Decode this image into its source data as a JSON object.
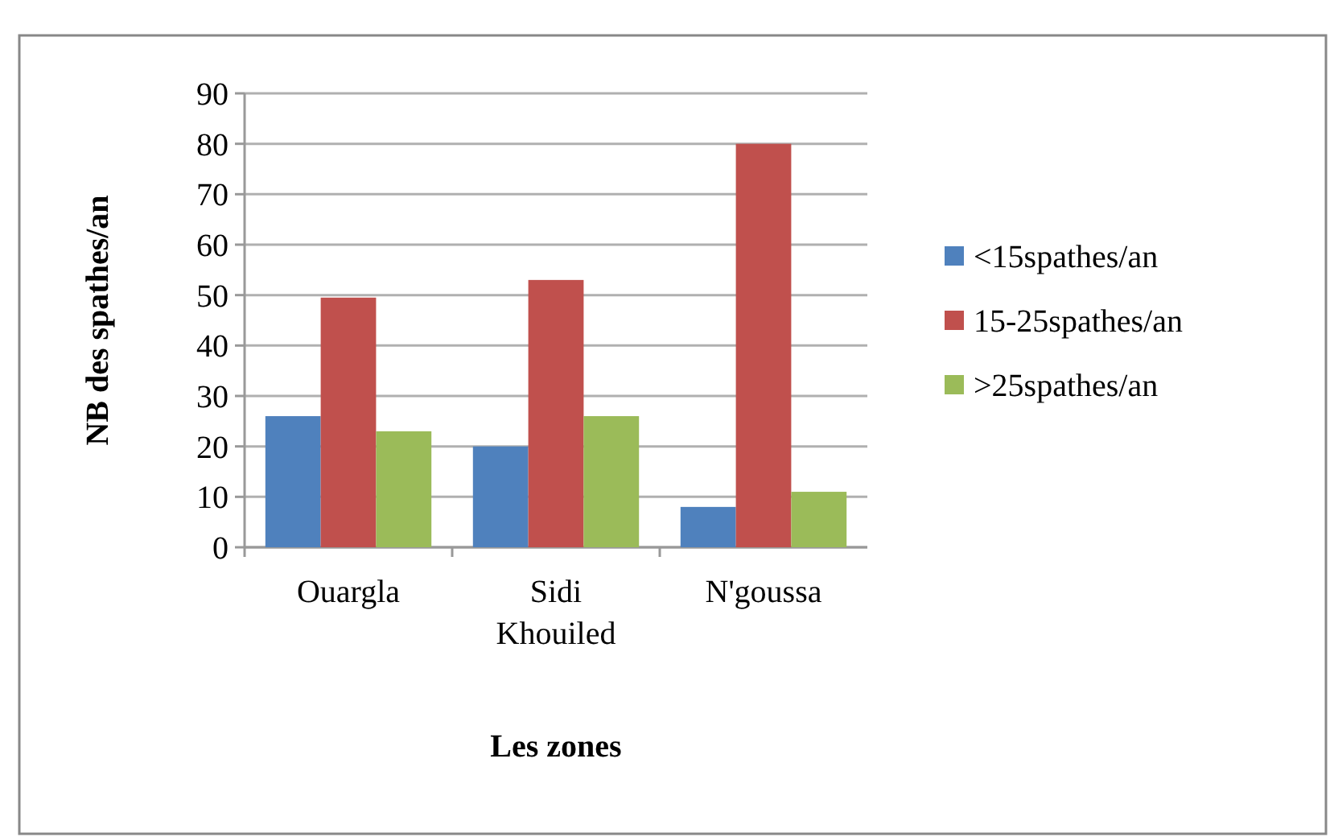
{
  "chart_data": {
    "type": "bar",
    "xlabel": "Les zones",
    "ylabel": "NB des spathes/an",
    "categories": [
      "Ouargla",
      "Sidi Khouiled",
      "N'goussa"
    ],
    "series": [
      {
        "name": "<15spathes/an",
        "color": "#4f81bd",
        "values": [
          26,
          20,
          8
        ]
      },
      {
        "name": "15-25spathes/an",
        "color": "#c0504d",
        "values": [
          49.5,
          53,
          80
        ]
      },
      {
        "name": ">25spathes/an",
        "color": "#9bbb59",
        "values": [
          23,
          26,
          11
        ]
      }
    ],
    "ylim": [
      0,
      90
    ],
    "yticks": [
      0,
      10,
      20,
      30,
      40,
      50,
      60,
      70,
      80,
      90
    ],
    "grid": "y",
    "legend": "right"
  }
}
